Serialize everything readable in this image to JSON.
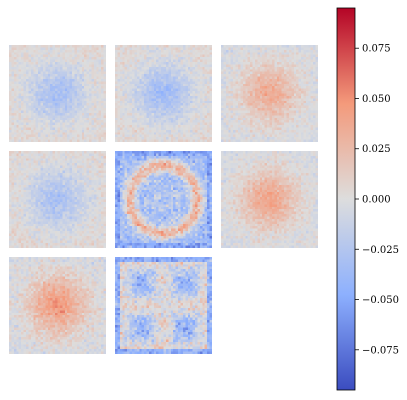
{
  "chart_data": {
    "type": "heatmap",
    "title": "",
    "xlabel": "",
    "ylabel": "",
    "grid": false,
    "layout": {
      "rows": 3,
      "cols": 3,
      "panels_shown": 8
    },
    "resolution": 40,
    "colormap": "coolwarm",
    "color_range": [
      -0.095,
      0.095
    ],
    "colorbar": {
      "ticks": [
        0.075,
        0.05,
        0.025,
        0.0,
        -0.025,
        -0.05,
        -0.075
      ],
      "tick_labels": [
        "0.075",
        "0.050",
        "0.025",
        "0.000",
        "−0.025",
        "−0.050",
        "−0.075"
      ]
    },
    "panels": [
      {
        "pattern": "center-blob",
        "amplitude": -0.03,
        "noise": 0.01
      },
      {
        "pattern": "center-blob",
        "amplitude": -0.035,
        "noise": 0.01
      },
      {
        "pattern": "center-blob",
        "amplitude": 0.035,
        "noise": 0.01
      },
      {
        "pattern": "center-blob",
        "amplitude": -0.03,
        "noise": 0.01
      },
      {
        "pattern": "ring",
        "amplitude": 0.07,
        "noise": 0.02
      },
      {
        "pattern": "center-blob",
        "amplitude": 0.04,
        "noise": 0.01
      },
      {
        "pattern": "center-blob",
        "amplitude": 0.045,
        "noise": 0.012
      },
      {
        "pattern": "grid",
        "amplitude": 0.05,
        "noise": 0.02
      }
    ]
  }
}
